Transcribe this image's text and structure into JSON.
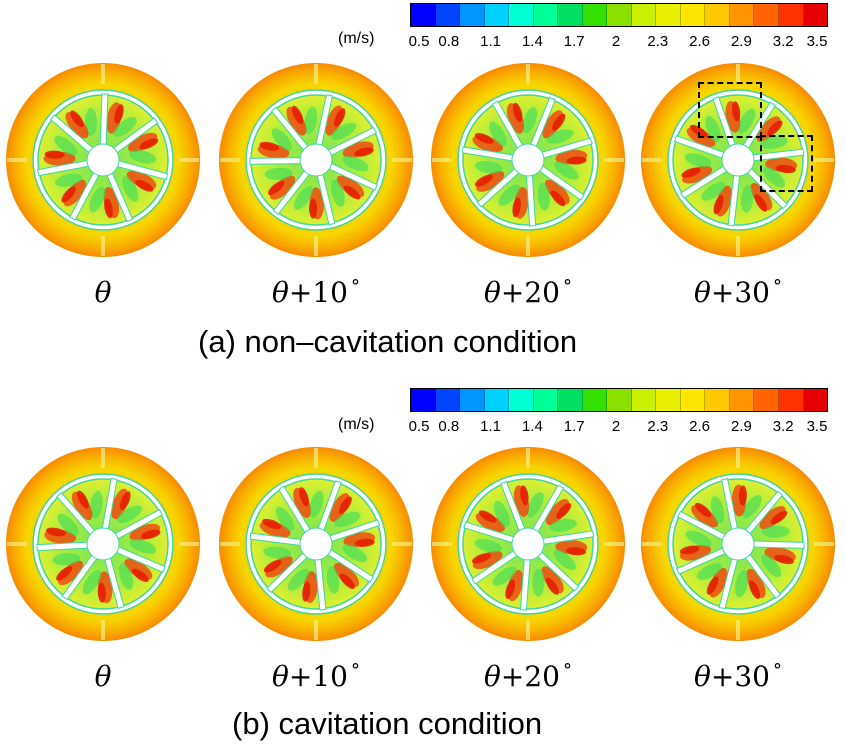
{
  "colorbar": {
    "unit": "(m/s)",
    "ticks": [
      "0.5",
      "0.8",
      "1.1",
      "1.4",
      "1.7",
      "2",
      "2.3",
      "2.6",
      "2.9",
      "3.2",
      "3.5"
    ],
    "colors": [
      "#0000ff",
      "#0046ff",
      "#0096ff",
      "#00d2ff",
      "#00ffd2",
      "#00ff96",
      "#00e060",
      "#33e000",
      "#8ce000",
      "#c8f000",
      "#e8f000",
      "#ffe600",
      "#ffc800",
      "#ff9600",
      "#ff6400",
      "#ff3200",
      "#e60000"
    ]
  },
  "rows": [
    {
      "caption": "(a)  non–cavitation condition",
      "panels": [
        {
          "symbol": "θ",
          "plus": "",
          "offset": "",
          "degree": ""
        },
        {
          "symbol": "θ",
          "plus": "+",
          "offset": "10",
          "degree": "°"
        },
        {
          "symbol": "θ",
          "plus": "+",
          "offset": "20",
          "degree": "°"
        },
        {
          "symbol": "θ",
          "plus": "+",
          "offset": "30",
          "degree": "°"
        }
      ]
    },
    {
      "caption": "(b)  cavitation condition",
      "panels": [
        {
          "symbol": "θ",
          "plus": "",
          "offset": "",
          "degree": ""
        },
        {
          "symbol": "θ",
          "plus": "+",
          "offset": "10",
          "degree": "°"
        },
        {
          "symbol": "θ",
          "plus": "+",
          "offset": "20",
          "degree": "°"
        },
        {
          "symbol": "θ",
          "plus": "+",
          "offset": "30",
          "degree": "°"
        }
      ]
    }
  ],
  "panel_rotation_deg": [
    0,
    10,
    20,
    30
  ]
}
